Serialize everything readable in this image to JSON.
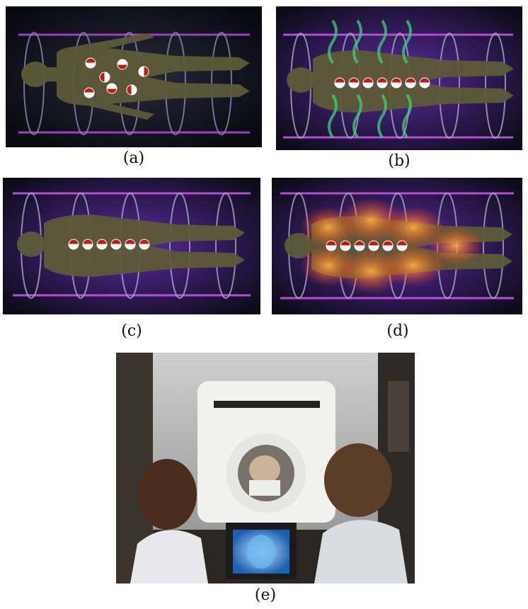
{
  "figure": {
    "panels": [
      {
        "id": "a",
        "caption": "(a)",
        "scene": "body-scan",
        "state": "random spins",
        "tint": "#5a2a8a"
      },
      {
        "id": "b",
        "caption": "(b)",
        "scene": "body-scan",
        "state": "aligned spins, radio waves",
        "tint": "#5a2a8a",
        "wave_color": "#3fd07a"
      },
      {
        "id": "c",
        "caption": "(c)",
        "scene": "body-scan",
        "state": "aligned spins",
        "tint": "#5a2a8a"
      },
      {
        "id": "d",
        "caption": "(d)",
        "scene": "body-scan",
        "state": "aligned spins, emission",
        "tint": "#5a2a8a",
        "glow_color": "#ff6a1a"
      },
      {
        "id": "e",
        "caption": "(e)",
        "scene": "mri-room",
        "state": "operators at scanner console"
      }
    ],
    "colors": {
      "cage": "#b64bd6",
      "body": "#6b6a3c",
      "spin_red": "#c41818",
      "spin_white": "#ffffff",
      "background": "#0c0c18"
    }
  }
}
